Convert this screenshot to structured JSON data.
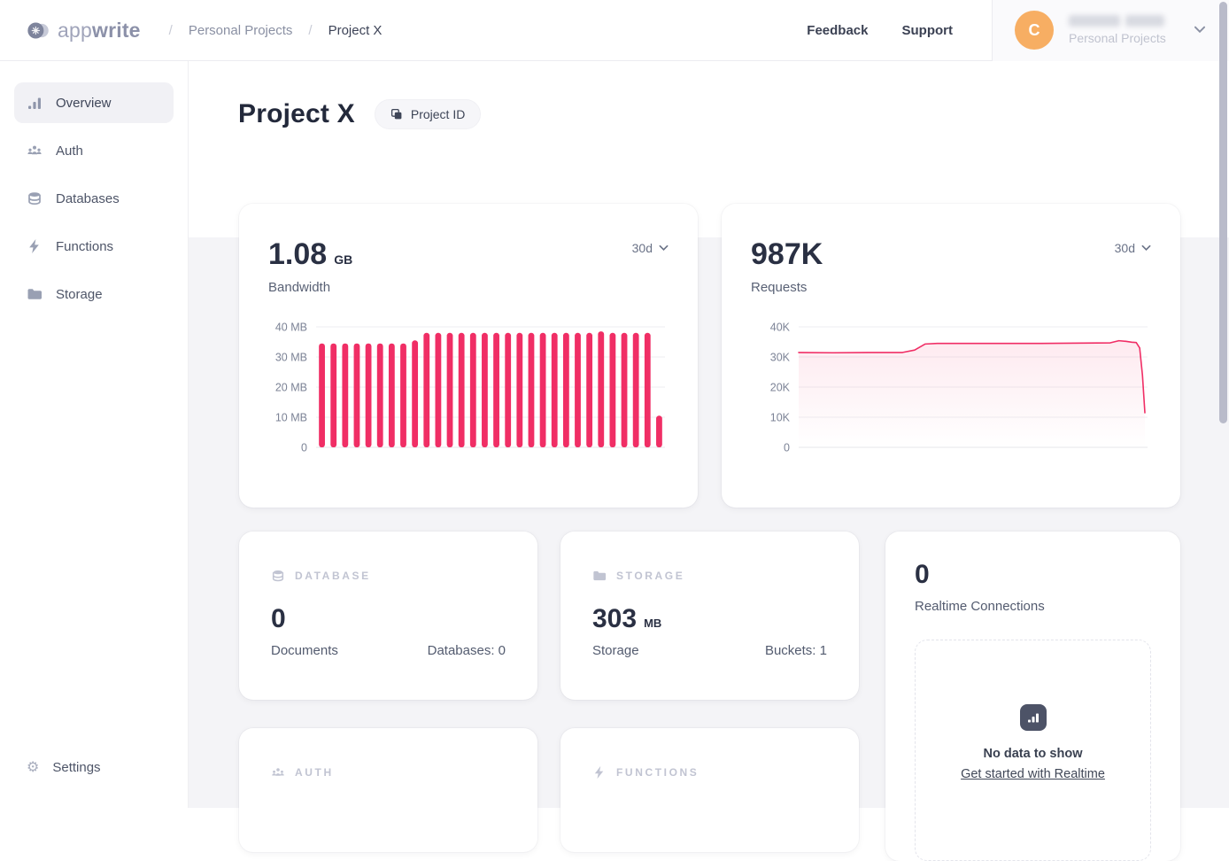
{
  "brand": {
    "logo_app": "app",
    "logo_write": "write"
  },
  "header": {
    "breadcrumb": {
      "separator": "/",
      "parent": "Personal Projects",
      "current": "Project X"
    },
    "nav": {
      "feedback": "Feedback",
      "support": "Support"
    },
    "user": {
      "avatar_initial": "C",
      "org": "Personal Projects"
    }
  },
  "sidebar": {
    "items": [
      {
        "label": "Overview",
        "icon": "bar-chart-icon",
        "active": true
      },
      {
        "label": "Auth",
        "icon": "people-icon",
        "active": false
      },
      {
        "label": "Databases",
        "icon": "database-icon",
        "active": false
      },
      {
        "label": "Functions",
        "icon": "lightning-icon",
        "active": false
      },
      {
        "label": "Storage",
        "icon": "folder-icon",
        "active": false
      }
    ],
    "settings": {
      "label": "Settings",
      "icon": "gear-icon",
      "gear_glyph": "⚙"
    }
  },
  "page": {
    "title": "Project X",
    "project_id_label": "Project ID"
  },
  "cards": {
    "bandwidth": {
      "value": "1.08",
      "unit": "GB",
      "label": "Bandwidth",
      "range": "30d"
    },
    "requests": {
      "value": "987K",
      "label": "Requests",
      "range": "30d"
    },
    "database": {
      "category": "DATABASE",
      "value": "0",
      "label": "Documents",
      "meta": "Databases: 0"
    },
    "storage": {
      "category": "STORAGE",
      "value": "303",
      "unit": "MB",
      "label": "Storage",
      "meta": "Buckets: 1"
    },
    "realtime": {
      "value": "0",
      "label": "Realtime Connections",
      "empty_title": "No data to show",
      "empty_link": "Get started with Realtime"
    },
    "auth": {
      "category": "AUTH"
    },
    "functions": {
      "category": "FUNCTIONS"
    }
  },
  "colors": {
    "accent": "#F02E65",
    "grid": "#EDEEF2",
    "grid_zero": "#E4E5EA",
    "tick": "#7C8396"
  },
  "chart_data": [
    {
      "id": "bandwidth",
      "type": "bar",
      "title": "Bandwidth (30d)",
      "xlabel": "",
      "ylabel": "MB",
      "ylim": [
        0,
        40
      ],
      "yticks": [
        40,
        30,
        20,
        10,
        0
      ],
      "ytick_labels": [
        "40 MB",
        "30 MB",
        "20 MB",
        "10 MB",
        "0"
      ],
      "grid": true,
      "legend": "none",
      "values": [
        34.5,
        34.5,
        34.5,
        34.5,
        34.5,
        34.5,
        34.5,
        34.5,
        35.5,
        38,
        38,
        38,
        38,
        38,
        38,
        38,
        38,
        38,
        38,
        38,
        38,
        38,
        38,
        38,
        38.5,
        38,
        38,
        38,
        38,
        10.5
      ],
      "color": "#F02E65"
    },
    {
      "id": "requests",
      "type": "area",
      "title": "Requests (30d)",
      "xlabel": "",
      "ylabel": "K requests",
      "ylim": [
        0,
        40
      ],
      "yticks": [
        40,
        30,
        20,
        10,
        0
      ],
      "ytick_labels": [
        "40K",
        "30K",
        "20K",
        "10K",
        "0"
      ],
      "grid": true,
      "legend": "none",
      "points": [
        {
          "x": 0.0,
          "y": 31.5
        },
        {
          "x": 0.1,
          "y": 31.4
        },
        {
          "x": 0.2,
          "y": 31.5
        },
        {
          "x": 0.3,
          "y": 31.5
        },
        {
          "x": 0.335,
          "y": 32.3
        },
        {
          "x": 0.365,
          "y": 34.3
        },
        {
          "x": 0.4,
          "y": 34.5
        },
        {
          "x": 0.55,
          "y": 34.5
        },
        {
          "x": 0.7,
          "y": 34.5
        },
        {
          "x": 0.82,
          "y": 34.6
        },
        {
          "x": 0.9,
          "y": 34.7
        },
        {
          "x": 0.925,
          "y": 35.4
        },
        {
          "x": 0.945,
          "y": 35.2
        },
        {
          "x": 0.962,
          "y": 34.9
        },
        {
          "x": 0.975,
          "y": 34.8
        },
        {
          "x": 0.985,
          "y": 33.0
        },
        {
          "x": 0.993,
          "y": 24.0
        },
        {
          "x": 1.0,
          "y": 11.5
        }
      ],
      "color": "#F02E65"
    }
  ]
}
